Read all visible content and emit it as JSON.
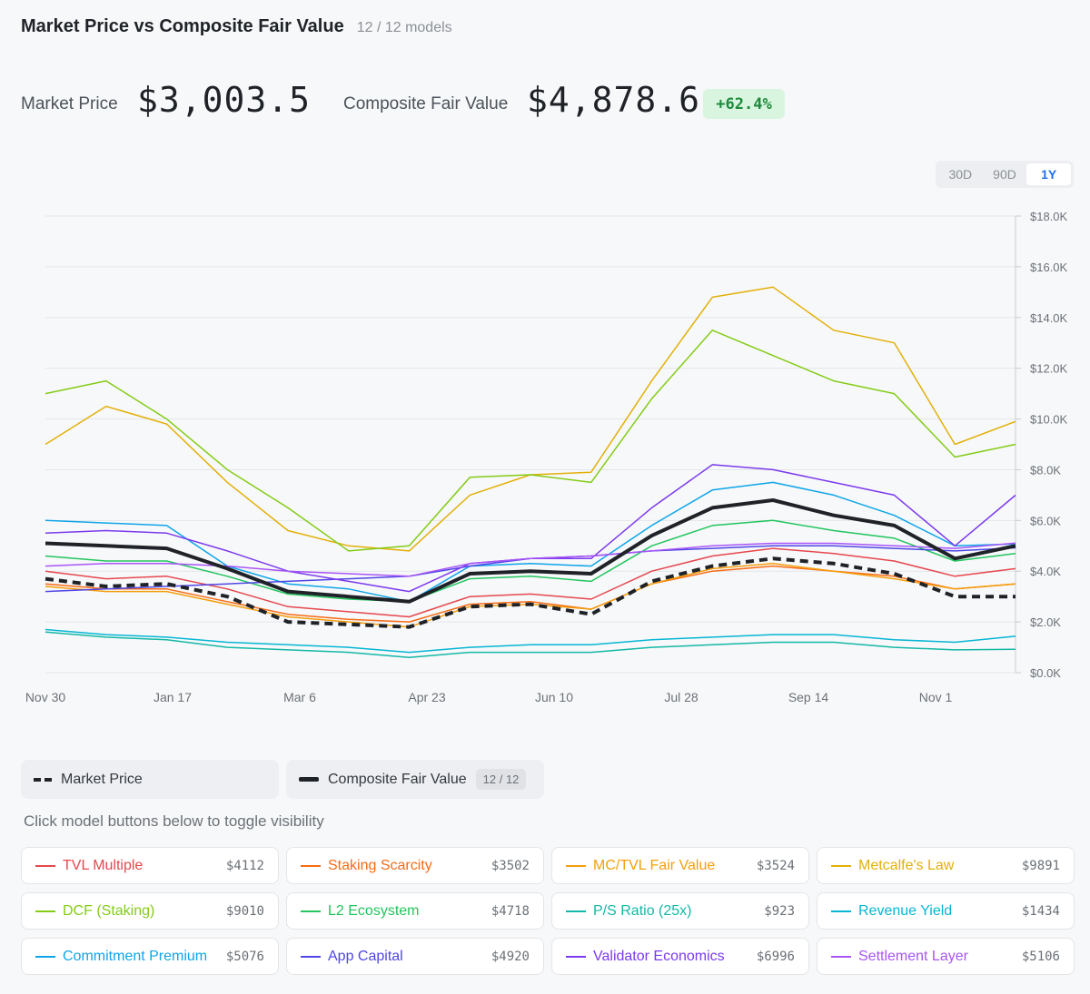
{
  "header": {
    "title": "Market Price vs Composite Fair Value",
    "model_count": "12 / 12 models"
  },
  "stats": {
    "market_label": "Market Price",
    "market_value": "$3,003.5",
    "fair_label": "Composite Fair Value",
    "fair_value": "$4,878.6",
    "delta": "+62.4%"
  },
  "range_tabs": {
    "items": [
      "30D",
      "90D",
      "1Y"
    ],
    "active": "1Y"
  },
  "legend": {
    "market": {
      "label": "Market Price"
    },
    "composite": {
      "label": "Composite Fair Value",
      "count": "12 / 12"
    }
  },
  "hint": "Click model buttons below to toggle visibility",
  "models": [
    {
      "name": "TVL Multiple",
      "value": "$4112",
      "color": "#e5484d"
    },
    {
      "name": "Staking Scarcity",
      "value": "$3502",
      "color": "#f76b15"
    },
    {
      "name": "MC/TVL Fair Value",
      "value": "$3524",
      "color": "#f59e0b"
    },
    {
      "name": "Metcalfe's Law",
      "value": "$9891",
      "color": "#e3b008"
    },
    {
      "name": "DCF (Staking)",
      "value": "$9010",
      "color": "#84cc16"
    },
    {
      "name": "L2 Ecosystem",
      "value": "$4718",
      "color": "#22c55e"
    },
    {
      "name": "P/S Ratio (25x)",
      "value": "$923",
      "color": "#14b8a6"
    },
    {
      "name": "Revenue Yield",
      "value": "$1434",
      "color": "#06b6d4"
    },
    {
      "name": "Commitment Premium",
      "value": "$5076",
      "color": "#0ea5e9"
    },
    {
      "name": "App Capital",
      "value": "$4920",
      "color": "#4f46e5"
    },
    {
      "name": "Validator Economics",
      "value": "$6996",
      "color": "#7c3aed"
    },
    {
      "name": "Settlement Layer",
      "value": "$5106",
      "color": "#a855f7"
    }
  ],
  "chart_data": {
    "type": "line",
    "x_tick_labels": [
      "Nov 30",
      "Jan 17",
      "Mar 6",
      "Apr 23",
      "Jun 10",
      "Jul 28",
      "Sep 14",
      "Nov 1"
    ],
    "y_tick_labels": [
      "$0.0K",
      "$2.0K",
      "$4.0K",
      "$6.0K",
      "$8.0K",
      "$10.0K",
      "$12.0K",
      "$14.0K",
      "$16.0K",
      "$18.0K"
    ],
    "ylim": [
      0,
      18000
    ],
    "grid": true,
    "x_points": [
      "Nov 30",
      "Dec 21",
      "Jan 17",
      "Feb 5",
      "Mar 6",
      "Mar 25",
      "Apr 23",
      "May 12",
      "Jun 10",
      "Jun 29",
      "Jul 28",
      "Aug 16",
      "Sep 14",
      "Oct 3",
      "Nov 1",
      "Nov 20",
      "Nov 30"
    ],
    "series": [
      {
        "name": "Market Price",
        "color": "#1f2328",
        "style": "dashed",
        "values": [
          3700,
          3400,
          3500,
          3000,
          2000,
          1900,
          1800,
          2600,
          2700,
          2300,
          3600,
          4200,
          4500,
          4300,
          3900,
          3000,
          3000
        ]
      },
      {
        "name": "Composite Fair Value",
        "color": "#1f2328",
        "style": "bold",
        "values": [
          5100,
          5000,
          4900,
          4100,
          3200,
          3000,
          2800,
          3900,
          4000,
          3900,
          5400,
          6500,
          6800,
          6200,
          5800,
          4500,
          5000
        ]
      },
      {
        "name": "TVL Multiple",
        "color": "#e5484d",
        "values": [
          4000,
          3700,
          3800,
          3300,
          2600,
          2400,
          2200,
          3000,
          3100,
          2900,
          4000,
          4600,
          4900,
          4700,
          4400,
          3800,
          4100
        ]
      },
      {
        "name": "Staking Scarcity",
        "color": "#f76b15",
        "values": [
          3500,
          3300,
          3300,
          2800,
          2300,
          2100,
          2000,
          2700,
          2800,
          2500,
          3500,
          4000,
          4200,
          4000,
          3800,
          3300,
          3500
        ]
      },
      {
        "name": "MC/TVL Fair Value",
        "color": "#f59e0b",
        "values": [
          3400,
          3200,
          3200,
          2700,
          2200,
          2000,
          1800,
          2600,
          2700,
          2500,
          3500,
          4100,
          4300,
          4000,
          3700,
          3300,
          3500
        ]
      },
      {
        "name": "Metcalfe's Law",
        "color": "#e3b008",
        "values": [
          9000,
          10500,
          9800,
          7500,
          5600,
          5000,
          4800,
          7000,
          7800,
          7900,
          11500,
          14800,
          15200,
          13500,
          13000,
          9000,
          9900
        ]
      },
      {
        "name": "DCF (Staking)",
        "color": "#84cc16",
        "values": [
          11000,
          11500,
          10000,
          8000,
          6500,
          4800,
          5000,
          7700,
          7800,
          7500,
          10800,
          13500,
          12500,
          11500,
          11000,
          8500,
          9000
        ]
      },
      {
        "name": "L2 Ecosystem",
        "color": "#22c55e",
        "values": [
          4600,
          4400,
          4400,
          3800,
          3100,
          2900,
          2800,
          3700,
          3800,
          3600,
          5000,
          5800,
          6000,
          5600,
          5300,
          4400,
          4700
        ]
      },
      {
        "name": "P/S Ratio (25x)",
        "color": "#14b8a6",
        "values": [
          1600,
          1400,
          1300,
          1000,
          900,
          800,
          600,
          800,
          800,
          800,
          1000,
          1100,
          1200,
          1200,
          1000,
          900,
          923
        ]
      },
      {
        "name": "Revenue Yield",
        "color": "#06b6d4",
        "values": [
          1700,
          1500,
          1400,
          1200,
          1100,
          1000,
          800,
          1000,
          1100,
          1100,
          1300,
          1400,
          1500,
          1500,
          1300,
          1200,
          1434
        ]
      },
      {
        "name": "Commitment Premium",
        "color": "#0ea5e9",
        "values": [
          6000,
          5900,
          5800,
          4200,
          3500,
          3300,
          2800,
          4200,
          4300,
          4200,
          5800,
          7200,
          7500,
          7000,
          6200,
          5000,
          5076
        ]
      },
      {
        "name": "App Capital",
        "color": "#4f46e5",
        "values": [
          3200,
          3300,
          3400,
          3500,
          3600,
          3700,
          3800,
          4200,
          4500,
          4600,
          4800,
          4900,
          5000,
          5000,
          4900,
          4800,
          4920
        ]
      },
      {
        "name": "Validator Economics",
        "color": "#7c3aed",
        "values": [
          5500,
          5600,
          5500,
          4800,
          4000,
          3600,
          3200,
          4300,
          4500,
          4500,
          6500,
          8200,
          8000,
          7500,
          7000,
          5000,
          6996
        ]
      },
      {
        "name": "Settlement Layer",
        "color": "#a855f7",
        "values": [
          4200,
          4300,
          4300,
          4200,
          4000,
          3900,
          3800,
          4300,
          4500,
          4600,
          4800,
          5000,
          5100,
          5100,
          5000,
          4900,
          5106
        ]
      }
    ]
  }
}
